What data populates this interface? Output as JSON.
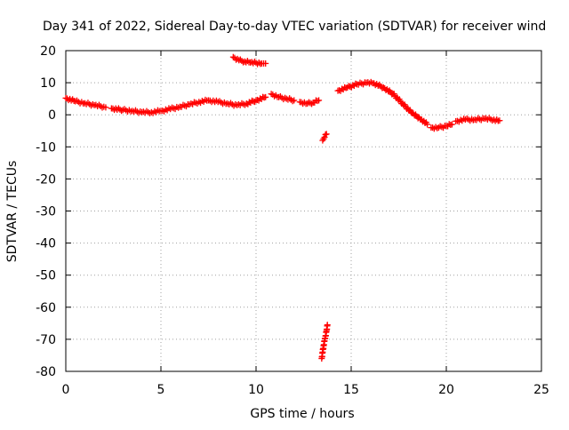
{
  "chart_data": {
    "type": "scatter",
    "title": "Day 341 of 2022, Sidereal Day-to-day VTEC variation (SDTVAR) for receiver wind",
    "xlabel": "GPS time / hours",
    "ylabel": "SDTVAR / TECUs",
    "xlim": [
      0,
      25
    ],
    "ylim": [
      -80,
      20
    ],
    "xticks": [
      0,
      5,
      10,
      15,
      20,
      25
    ],
    "yticks": [
      20,
      10,
      0,
      -10,
      -20,
      -30,
      -40,
      -50,
      -60,
      -70,
      -80
    ],
    "grid": true,
    "marker": "+",
    "colors": {
      "points": "#ff0000",
      "grid": "#a0a0a0",
      "axes": "#000000"
    },
    "series": [
      {
        "name": "SDTVAR",
        "segments": [
          {
            "x": [
              0.0,
              0.5,
              1.0,
              1.5,
              2.0,
              2.1
            ],
            "y": [
              5.2,
              4.2,
              3.6,
              3.0,
              2.5,
              2.3
            ]
          },
          {
            "x": [
              2.4,
              3.0,
              3.5,
              4.0,
              4.5,
              5.0,
              5.5,
              6.0,
              6.5,
              7.0,
              7.5,
              8.0,
              8.5,
              9.0,
              9.5,
              10.0,
              10.5
            ],
            "y": [
              2.0,
              1.5,
              1.2,
              0.8,
              0.8,
              1.2,
              1.8,
              2.5,
              3.2,
              4.0,
              4.5,
              4.0,
              3.5,
              3.0,
              3.5,
              4.5,
              5.5
            ]
          },
          {
            "x": [
              10.8,
              11.2,
              11.6,
              12.0
            ],
            "y": [
              6.5,
              5.5,
              5.0,
              4.5
            ]
          },
          {
            "x": [
              12.3,
              12.7,
              13.0,
              13.3
            ],
            "y": [
              4.0,
              3.5,
              3.8,
              4.5
            ]
          },
          {
            "x": [
              8.8,
              9.1,
              9.4,
              9.7,
              10.0,
              10.3,
              10.5
            ],
            "y": [
              18.0,
              17.0,
              16.6,
              16.3,
              16.2,
              16.0,
              16.0
            ]
          },
          {
            "x": [
              13.5,
              13.6,
              13.7
            ],
            "y": [
              -8.0,
              -7.0,
              -6.0
            ]
          },
          {
            "x": [
              13.45,
              13.5,
              13.55,
              13.6,
              13.65,
              13.7,
              13.75
            ],
            "y": [
              -76.0,
              -74.0,
              -72.0,
              -70.5,
              -69.0,
              -67.5,
              -65.5
            ]
          },
          {
            "x": [
              14.3,
              14.8,
              15.3,
              15.8,
              16.2,
              16.7,
              17.2,
              17.7,
              18.2,
              18.7,
              19.0
            ],
            "y": [
              7.5,
              8.5,
              9.5,
              10.0,
              9.8,
              8.5,
              6.5,
              3.5,
              0.5,
              -1.5,
              -3.0
            ]
          },
          {
            "x": [
              19.2,
              19.6,
              20.0,
              20.3
            ],
            "y": [
              -4.0,
              -4.0,
              -3.5,
              -3.0
            ]
          },
          {
            "x": [
              20.5,
              21.0,
              21.5,
              22.0,
              22.5,
              22.8
            ],
            "y": [
              -2.0,
              -1.5,
              -1.5,
              -1.2,
              -1.5,
              -1.8
            ]
          }
        ]
      }
    ]
  }
}
